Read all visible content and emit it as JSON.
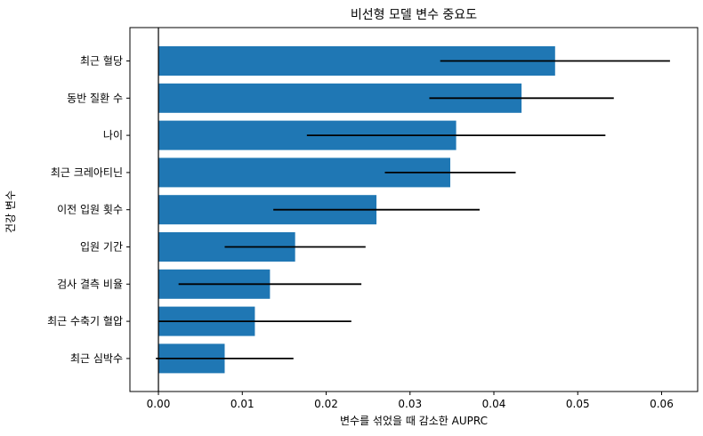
{
  "chart_data": {
    "type": "bar",
    "orientation": "horizontal",
    "title": "비선형 모델 변수 중요도",
    "xlabel": "변수를 섞었을 때 감소한 AUPRC",
    "ylabel": "건강 변수",
    "categories": [
      "최근 혈당",
      "동반 질환 수",
      "나이",
      "최근 크레아티닌",
      "이전 입원 횟수",
      "입원 기간",
      "검사 결측 비율",
      "최근 수축기 혈압",
      "최근 심박수"
    ],
    "values": [
      0.0473,
      0.0433,
      0.0355,
      0.0348,
      0.026,
      0.0163,
      0.0133,
      0.0115,
      0.0079
    ],
    "error": [
      0.0137,
      0.011,
      0.0178,
      0.0078,
      0.0123,
      0.0084,
      0.0109,
      0.0115,
      0.0082
    ],
    "xlim": [
      -0.0034,
      0.0643
    ],
    "xticks": [
      "0.00",
      "0.01",
      "0.02",
      "0.03",
      "0.04",
      "0.05",
      "0.06"
    ],
    "reference_line": 0,
    "bar_color": "#1f77b4",
    "error_color": "#000000",
    "grid": false,
    "legend": "none"
  }
}
